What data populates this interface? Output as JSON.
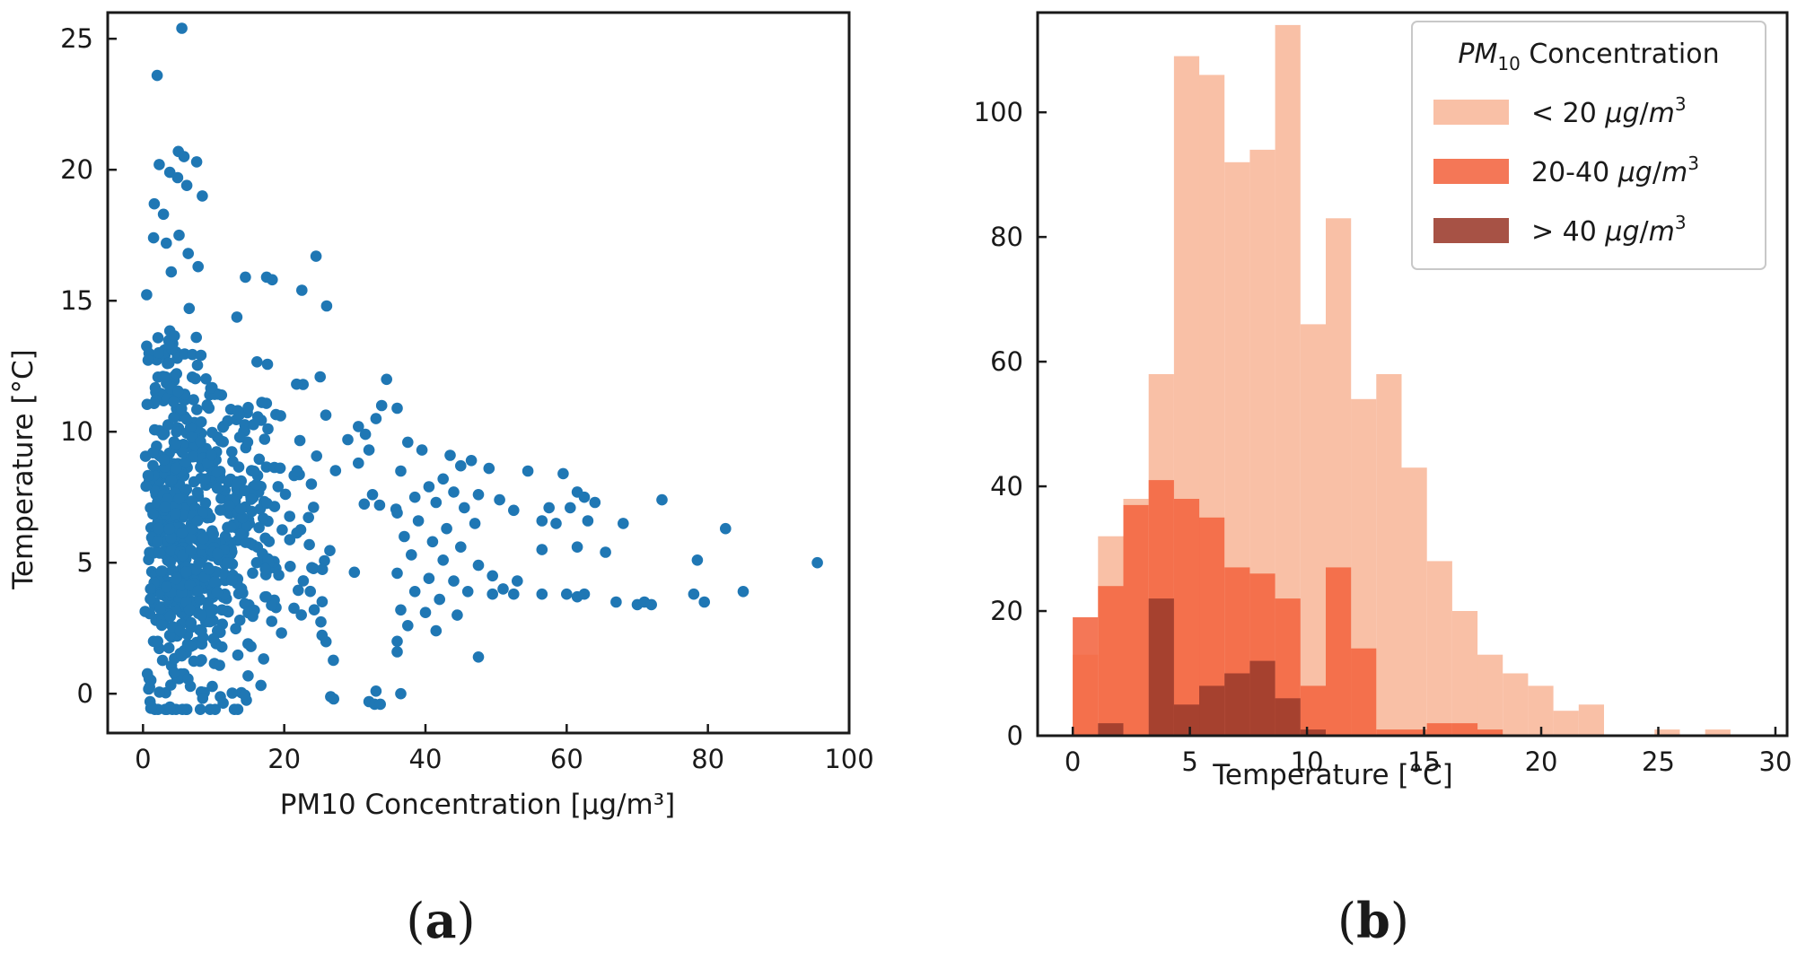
{
  "chart_data": [
    {
      "type": "scatter",
      "panel": "a",
      "xlabel": "PM10 Concentration [μg/m³]",
      "ylabel": "Temperature [°C]",
      "xlim": [
        -5,
        100
      ],
      "ylim": [
        -1.5,
        26
      ],
      "xticks": [
        0,
        20,
        40,
        60,
        80,
        100
      ],
      "yticks": [
        0,
        5,
        10,
        15,
        20,
        25
      ],
      "color": "#1f77b4",
      "generated_cluster": {
        "n": 750,
        "seed": 11,
        "x_range": [
          0.2,
          36
        ],
        "y_range": [
          -0.6,
          15.5
        ]
      },
      "points": [
        {
          "x": 5.5,
          "y": 25.4
        },
        {
          "x": 2.0,
          "y": 23.6
        },
        {
          "x": 5.0,
          "y": 20.7
        },
        {
          "x": 5.8,
          "y": 20.5
        },
        {
          "x": 2.3,
          "y": 20.2
        },
        {
          "x": 7.6,
          "y": 20.3
        },
        {
          "x": 3.8,
          "y": 19.9
        },
        {
          "x": 6.2,
          "y": 19.4
        },
        {
          "x": 4.9,
          "y": 19.7
        },
        {
          "x": 8.4,
          "y": 19.0
        },
        {
          "x": 1.6,
          "y": 18.7
        },
        {
          "x": 2.9,
          "y": 18.3
        },
        {
          "x": 3.3,
          "y": 17.2
        },
        {
          "x": 5.1,
          "y": 17.5
        },
        {
          "x": 1.5,
          "y": 17.4
        },
        {
          "x": 6.4,
          "y": 16.8
        },
        {
          "x": 24.5,
          "y": 16.7
        },
        {
          "x": 7.8,
          "y": 16.3
        },
        {
          "x": 4.0,
          "y": 16.1
        },
        {
          "x": 14.5,
          "y": 15.9
        },
        {
          "x": 17.5,
          "y": 15.9
        },
        {
          "x": 18.3,
          "y": 15.8
        },
        {
          "x": 22.5,
          "y": 15.4
        },
        {
          "x": 26.0,
          "y": 14.8
        },
        {
          "x": 34.5,
          "y": 12.0
        },
        {
          "x": 33.8,
          "y": 11.0
        },
        {
          "x": 33.0,
          "y": 10.5
        },
        {
          "x": 37.5,
          "y": 9.6
        },
        {
          "x": 39.5,
          "y": 9.3
        },
        {
          "x": 43.5,
          "y": 9.1
        },
        {
          "x": 46.5,
          "y": 8.9
        },
        {
          "x": 45.0,
          "y": 8.7
        },
        {
          "x": 49.0,
          "y": 8.6
        },
        {
          "x": 54.5,
          "y": 8.5
        },
        {
          "x": 59.5,
          "y": 8.4
        },
        {
          "x": 42.5,
          "y": 8.2
        },
        {
          "x": 36.5,
          "y": 8.5
        },
        {
          "x": 40.5,
          "y": 7.9
        },
        {
          "x": 44.0,
          "y": 7.7
        },
        {
          "x": 47.5,
          "y": 7.6
        },
        {
          "x": 38.5,
          "y": 7.5
        },
        {
          "x": 41.5,
          "y": 7.3
        },
        {
          "x": 45.5,
          "y": 7.1
        },
        {
          "x": 50.5,
          "y": 7.4
        },
        {
          "x": 52.5,
          "y": 7.0
        },
        {
          "x": 57.5,
          "y": 7.1
        },
        {
          "x": 61.5,
          "y": 7.7
        },
        {
          "x": 62.5,
          "y": 7.5
        },
        {
          "x": 64.0,
          "y": 7.3
        },
        {
          "x": 73.5,
          "y": 7.4
        },
        {
          "x": 60.5,
          "y": 7.1
        },
        {
          "x": 36.0,
          "y": 6.9
        },
        {
          "x": 39.0,
          "y": 6.6
        },
        {
          "x": 43.0,
          "y": 6.3
        },
        {
          "x": 47.0,
          "y": 6.5
        },
        {
          "x": 56.5,
          "y": 6.6
        },
        {
          "x": 58.5,
          "y": 6.5
        },
        {
          "x": 63.0,
          "y": 6.6
        },
        {
          "x": 68.0,
          "y": 6.5
        },
        {
          "x": 82.5,
          "y": 6.3
        },
        {
          "x": 37.0,
          "y": 6.0
        },
        {
          "x": 41.0,
          "y": 5.8
        },
        {
          "x": 45.0,
          "y": 5.6
        },
        {
          "x": 56.5,
          "y": 5.5
        },
        {
          "x": 61.5,
          "y": 5.6
        },
        {
          "x": 65.5,
          "y": 5.4
        },
        {
          "x": 38.0,
          "y": 5.3
        },
        {
          "x": 42.5,
          "y": 5.1
        },
        {
          "x": 47.5,
          "y": 4.9
        },
        {
          "x": 78.5,
          "y": 5.1
        },
        {
          "x": 95.5,
          "y": 5.0
        },
        {
          "x": 36.0,
          "y": 4.6
        },
        {
          "x": 40.5,
          "y": 4.4
        },
        {
          "x": 44.0,
          "y": 4.3
        },
        {
          "x": 49.5,
          "y": 4.5
        },
        {
          "x": 53.0,
          "y": 4.3
        },
        {
          "x": 51.0,
          "y": 4.0
        },
        {
          "x": 46.0,
          "y": 3.9
        },
        {
          "x": 38.5,
          "y": 3.9
        },
        {
          "x": 42.0,
          "y": 3.6
        },
        {
          "x": 49.5,
          "y": 3.8
        },
        {
          "x": 52.5,
          "y": 3.8
        },
        {
          "x": 56.5,
          "y": 3.8
        },
        {
          "x": 60.0,
          "y": 3.8
        },
        {
          "x": 61.5,
          "y": 3.7
        },
        {
          "x": 62.5,
          "y": 3.8
        },
        {
          "x": 67.0,
          "y": 3.5
        },
        {
          "x": 70.0,
          "y": 3.4
        },
        {
          "x": 71.0,
          "y": 3.5
        },
        {
          "x": 72.0,
          "y": 3.4
        },
        {
          "x": 79.5,
          "y": 3.5
        },
        {
          "x": 78.0,
          "y": 3.8
        },
        {
          "x": 85.0,
          "y": 3.9
        },
        {
          "x": 36.5,
          "y": 3.2
        },
        {
          "x": 40.0,
          "y": 3.1
        },
        {
          "x": 44.5,
          "y": 3.0
        },
        {
          "x": 37.5,
          "y": 2.6
        },
        {
          "x": 41.5,
          "y": 2.4
        },
        {
          "x": 36.0,
          "y": 2.0
        },
        {
          "x": 47.5,
          "y": 1.4
        },
        {
          "x": 36.0,
          "y": 1.6
        },
        {
          "x": 36.5,
          "y": 0.0
        },
        {
          "x": 30.5,
          "y": 10.2
        },
        {
          "x": 31.5,
          "y": 9.9
        },
        {
          "x": 29.0,
          "y": 9.7
        },
        {
          "x": 32.0,
          "y": 9.3
        },
        {
          "x": 30.5,
          "y": 8.8
        },
        {
          "x": 32.5,
          "y": 7.6
        },
        {
          "x": 33.5,
          "y": 7.2
        },
        {
          "x": 33.0,
          "y": 0.1
        },
        {
          "x": 32.0,
          "y": -0.3
        },
        {
          "x": 32.8,
          "y": -0.4
        },
        {
          "x": 33.6,
          "y": -0.4
        },
        {
          "x": 27.0,
          "y": -0.2
        },
        {
          "x": 1.0,
          "y": -0.3
        },
        {
          "x": 1.2,
          "y": -0.5
        }
      ]
    },
    {
      "type": "histogram",
      "panel": "b",
      "xlabel": "Temperature [°C]",
      "ylabel": "",
      "xlim": [
        -1.5,
        30.5
      ],
      "ylim": [
        0,
        116
      ],
      "xticks": [
        0,
        5,
        10,
        15,
        20,
        25,
        30
      ],
      "yticks": [
        0,
        20,
        40,
        60,
        80,
        100
      ],
      "bin_start": 0,
      "bin_width": 1.08,
      "legend": {
        "title_italic": "PM",
        "title_sub": "10",
        "title_rest": " Concentration",
        "location": "upper right"
      },
      "series": [
        {
          "name": "< 20 μg/m³",
          "label_prefix": "< 20 ",
          "color": "#f8b79a",
          "counts": [
            13,
            32,
            38,
            58,
            109,
            106,
            92,
            94,
            114,
            66,
            83,
            54,
            58,
            43,
            28,
            20,
            13,
            10,
            8,
            4,
            5,
            0,
            0,
            1,
            0,
            1,
            0,
            0
          ]
        },
        {
          "name": "20-40 μg/m³",
          "label_prefix": "20-40 ",
          "color": "#f36440",
          "counts": [
            19,
            24,
            37,
            41,
            38,
            35,
            27,
            26,
            22,
            8,
            27,
            14,
            1,
            1,
            2,
            2,
            1,
            0,
            0,
            0,
            0,
            0,
            0,
            0,
            0,
            0,
            0,
            0
          ]
        },
        {
          "name": "> 40 μg/m³",
          "label_prefix": "> 40 ",
          "color": "#9b3a2b",
          "counts": [
            0,
            2,
            0,
            22,
            5,
            8,
            10,
            12,
            6,
            1,
            0,
            0,
            0,
            0,
            0,
            0,
            0,
            0,
            0,
            0,
            0,
            0,
            0,
            0,
            0,
            0,
            0,
            0
          ]
        }
      ]
    }
  ],
  "panel_labels": {
    "a": {
      "open": "(",
      "letter": "a",
      "close": ")"
    },
    "b": {
      "open": "(",
      "letter": "b",
      "close": ")"
    }
  }
}
